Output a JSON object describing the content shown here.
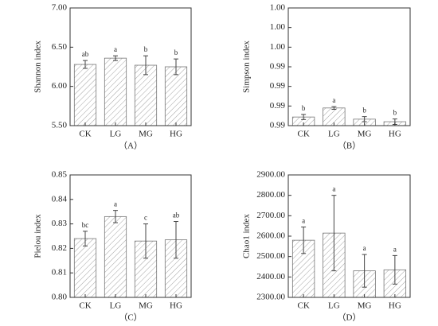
{
  "chart_data": [
    {
      "type": "bar",
      "ylabel": "Shannon index",
      "caption": "（A）",
      "categories": [
        "CK",
        "LG",
        "MG",
        "HG"
      ],
      "values": [
        6.28,
        6.36,
        6.27,
        6.25
      ],
      "errors": [
        0.05,
        0.03,
        0.12,
        0.1
      ],
      "annotations": [
        "ab",
        "a",
        "b",
        "b"
      ],
      "color": "#d9d9d9",
      "ylim": [
        5.5,
        7.0
      ],
      "yticks": [
        {
          "value": 5.5,
          "label": "5.50"
        },
        {
          "value": 6.0,
          "label": "6.00"
        },
        {
          "value": 6.5,
          "label": "6.50"
        },
        {
          "value": 7.0,
          "label": "7.00"
        }
      ]
    },
    {
      "type": "bar",
      "ylabel": "Simpson index",
      "caption": "（B）",
      "categories": [
        "CK",
        "LG",
        "MG",
        "HG"
      ],
      "values": [
        0.99194,
        0.9924,
        0.99183,
        0.9917
      ],
      "errors": [
        0.00013,
        7e-05,
        0.00013,
        0.00014
      ],
      "annotations": [
        "b",
        "a",
        "b",
        "b"
      ],
      "color": "#d9d9d9",
      "ylim": [
        0.9915,
        0.9975
      ],
      "yticks": [
        {
          "value": 0.9915,
          "label": "0.99"
        },
        {
          "value": 0.9925,
          "label": "0.99"
        },
        {
          "value": 0.9935,
          "label": "0.99"
        },
        {
          "value": 0.9945,
          "label": "0.99"
        },
        {
          "value": 0.9955,
          "label": "1.00"
        },
        {
          "value": 0.9965,
          "label": "1.00"
        },
        {
          "value": 0.9975,
          "label": "1.00"
        }
      ]
    },
    {
      "type": "bar",
      "ylabel": "Pielou index",
      "caption": "（C）",
      "categories": [
        "CK",
        "LG",
        "MG",
        "HG"
      ],
      "values": [
        0.824,
        0.833,
        0.823,
        0.8235
      ],
      "errors": [
        0.003,
        0.0025,
        0.007,
        0.0075
      ],
      "annotations": [
        "bc",
        "a",
        "c",
        "ab"
      ],
      "color": "#d9d9d9",
      "ylim": [
        0.8,
        0.85
      ],
      "yticks": [
        {
          "value": 0.8,
          "label": "0.80"
        },
        {
          "value": 0.81,
          "label": "0.81"
        },
        {
          "value": 0.82,
          "label": "0.82"
        },
        {
          "value": 0.83,
          "label": "0.83"
        },
        {
          "value": 0.84,
          "label": "0.84"
        },
        {
          "value": 0.85,
          "label": "0.85"
        }
      ]
    },
    {
      "type": "bar",
      "ylabel": "Chao1 index",
      "caption": "（D）",
      "categories": [
        "CK",
        "LG",
        "MG",
        "HG"
      ],
      "values": [
        2580,
        2615,
        2430,
        2435
      ],
      "errors": [
        65,
        185,
        80,
        70
      ],
      "annotations": [
        "a",
        "a",
        "a",
        "a"
      ],
      "color": "#d9d9d9",
      "ylim": [
        2300,
        2900
      ],
      "yticks": [
        {
          "value": 2300,
          "label": "2300.00"
        },
        {
          "value": 2400,
          "label": "2400.00"
        },
        {
          "value": 2500,
          "label": "2500.00"
        },
        {
          "value": 2600,
          "label": "2600.00"
        },
        {
          "value": 2700,
          "label": "2700.00"
        },
        {
          "value": 2800,
          "label": "2800.00"
        },
        {
          "value": 2900,
          "label": "2900.00"
        }
      ]
    }
  ]
}
